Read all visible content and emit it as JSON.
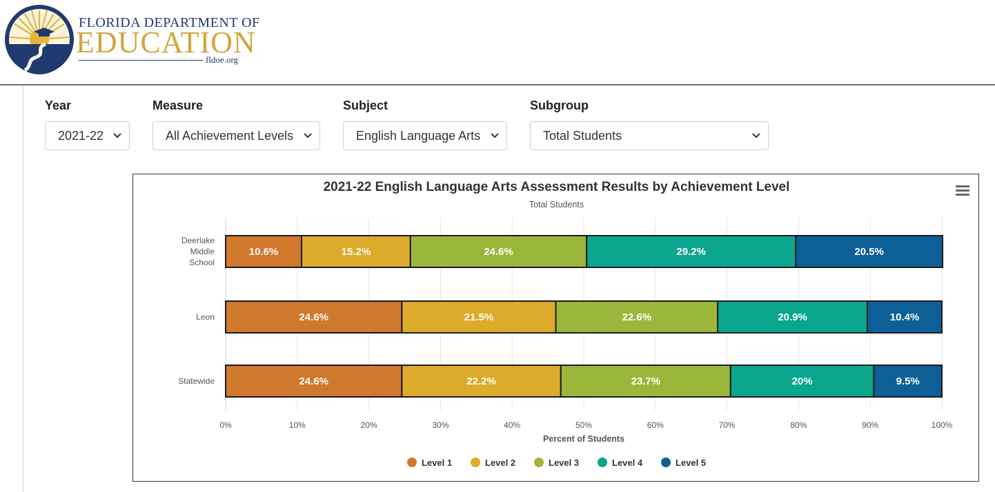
{
  "header": {
    "logo_line1": "FLORIDA DEPARTMENT OF",
    "logo_line2": "EDUCATION",
    "logo_line3": "fldoe.org"
  },
  "filters": [
    {
      "label": "Year",
      "value": "2021-22"
    },
    {
      "label": "Measure",
      "value": "All Achievement Levels"
    },
    {
      "label": "Subject",
      "value": "English Language Arts"
    },
    {
      "label": "Subgroup",
      "value": "Total Students"
    }
  ],
  "colors": {
    "level1": "#d0782c",
    "level2": "#ddab2b",
    "level3": "#9bb73b",
    "level4": "#0aa78e",
    "level5": "#0d6096",
    "logo_navy": "#1f3a6e",
    "logo_gold": "#d2a63a"
  },
  "chart_data": {
    "type": "bar",
    "orientation": "horizontal",
    "stacking": "percent",
    "title": "2021-22 English Language Arts Assessment Results by Achievement Level",
    "subtitle": "Total Students",
    "xlabel": "Percent of Students",
    "ylabel": "",
    "xlim": [
      0,
      100
    ],
    "x_ticks": [
      "0%",
      "10%",
      "20%",
      "30%",
      "40%",
      "50%",
      "60%",
      "70%",
      "80%",
      "90%",
      "100%"
    ],
    "categories": [
      [
        "Deerlake",
        "Middle",
        "School"
      ],
      [
        "Leon"
      ],
      [
        "Statewide"
      ]
    ],
    "series": [
      {
        "name": "Level 1",
        "values": [
          10.6,
          24.6,
          24.6
        ],
        "labels": [
          "10.6%",
          "24.6%",
          "24.6%"
        ]
      },
      {
        "name": "Level 2",
        "values": [
          15.2,
          21.5,
          22.2
        ],
        "labels": [
          "15.2%",
          "21.5%",
          "22.2%"
        ]
      },
      {
        "name": "Level 3",
        "values": [
          24.6,
          22.6,
          23.7
        ],
        "labels": [
          "24.6%",
          "22.6%",
          "23.7%"
        ]
      },
      {
        "name": "Level 4",
        "values": [
          29.2,
          20.9,
          20
        ],
        "labels": [
          "29.2%",
          "20.9%",
          "20%"
        ]
      },
      {
        "name": "Level 5",
        "values": [
          20.5,
          10.4,
          9.5
        ],
        "labels": [
          "20.5%",
          "10.4%",
          "9.5%"
        ]
      }
    ],
    "legend_position": "bottom-center",
    "grid": true
  }
}
